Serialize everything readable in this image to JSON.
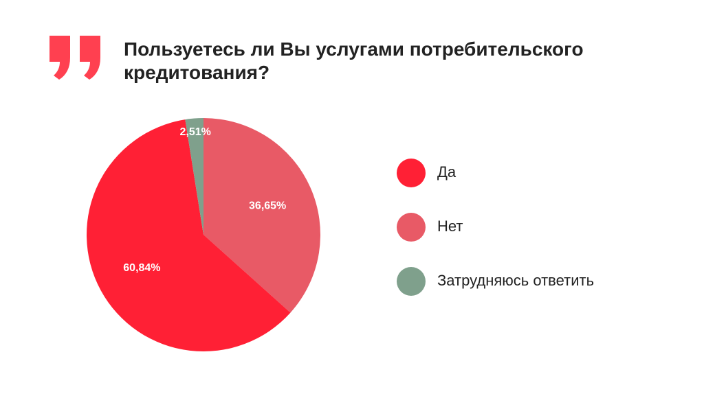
{
  "chart_data": {
    "type": "pie",
    "title": "Пользуетесь ли Вы услугами потребительского кредитования?",
    "categories": [
      "Да",
      "Нет",
      "Затрудняюсь ответить"
    ],
    "values": [
      60.84,
      36.65,
      2.51
    ],
    "value_labels": [
      "60,84%",
      "36,65%",
      "2,51%"
    ],
    "colors": [
      "#ff2035",
      "#e85a66",
      "#7fa08c"
    ],
    "legend": "right"
  }
}
